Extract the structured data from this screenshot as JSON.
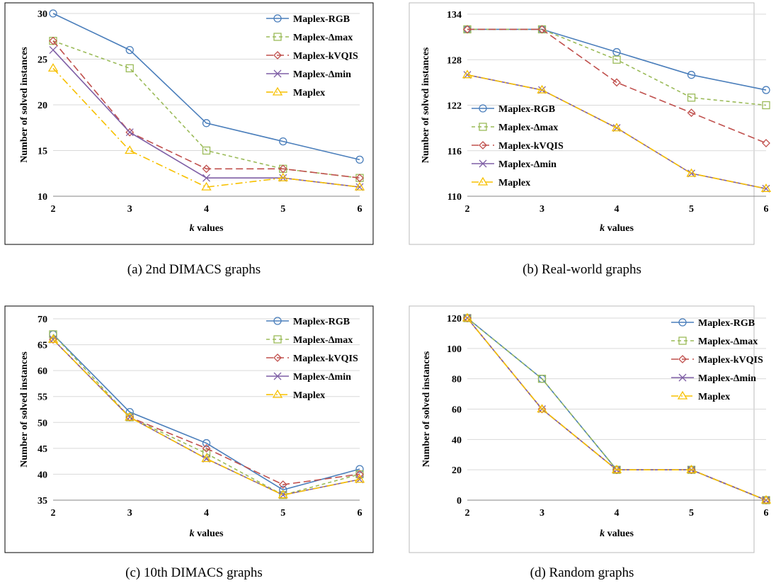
{
  "legend_entries": [
    "Maplex-RGB",
    "Maplex-Δmax",
    "Maplex-kVQIS",
    "Maplex-Δmin",
    "Maplex"
  ],
  "series_styles": [
    {
      "color": "#4a7ebb",
      "dash": "",
      "marker": "circle"
    },
    {
      "color": "#9bbb59",
      "dash": "5,4",
      "marker": "square"
    },
    {
      "color": "#c0504d",
      "dash": "10,5",
      "marker": "diamond"
    },
    {
      "color": "#7f5fa5",
      "dash": "",
      "marker": "x"
    },
    {
      "color": "#f7c000",
      "dash": "10,4,2,4",
      "marker": "triangle"
    }
  ],
  "chart_data": [
    {
      "type": "line",
      "caption": "(a) 2nd DIMACS graphs",
      "xlabel_italic": "k",
      "xlabel_rest": " values",
      "ylabel": "Number of solved instances",
      "x": [
        2,
        3,
        4,
        5,
        6
      ],
      "ylim": [
        10,
        30
      ],
      "yticks": [
        10,
        15,
        20,
        25,
        30
      ],
      "legend": "top-right",
      "series": [
        {
          "name": "Maplex-RGB",
          "values": [
            30,
            26,
            18,
            16,
            14
          ]
        },
        {
          "name": "Maplex-Δmax",
          "values": [
            27,
            24,
            15,
            13,
            12
          ]
        },
        {
          "name": "Maplex-kVQIS",
          "values": [
            27,
            17,
            13,
            13,
            12
          ]
        },
        {
          "name": "Maplex-Δmin",
          "values": [
            26,
            17,
            12,
            12,
            11
          ]
        },
        {
          "name": "Maplex",
          "values": [
            24,
            15,
            11,
            12,
            11
          ]
        }
      ]
    },
    {
      "type": "line",
      "caption": "(b) Real-world graphs",
      "xlabel_italic": "k",
      "xlabel_rest": " values",
      "ylabel": "Number of solved instances",
      "x": [
        2,
        3,
        4,
        5,
        6
      ],
      "ylim": [
        110,
        134
      ],
      "yticks": [
        110,
        116,
        122,
        128,
        134
      ],
      "legend": "left-middle",
      "series": [
        {
          "name": "Maplex-RGB",
          "values": [
            132,
            132,
            129,
            126,
            124
          ]
        },
        {
          "name": "Maplex-Δmax",
          "values": [
            132,
            132,
            128,
            123,
            122
          ]
        },
        {
          "name": "Maplex-kVQIS",
          "values": [
            132,
            132,
            125,
            121,
            117
          ]
        },
        {
          "name": "Maplex-Δmin",
          "values": [
            126,
            124,
            119,
            113,
            111
          ]
        },
        {
          "name": "Maplex",
          "values": [
            126,
            124,
            119,
            113,
            111
          ]
        }
      ]
    },
    {
      "type": "line",
      "caption": "(c) 10th DIMACS graphs",
      "xlabel_italic": "k",
      "xlabel_rest": " values",
      "ylabel": "Number of solved instances",
      "x": [
        2,
        3,
        4,
        5,
        6
      ],
      "ylim": [
        35,
        70
      ],
      "yticks": [
        35,
        40,
        45,
        50,
        55,
        60,
        65,
        70
      ],
      "legend": "top-right",
      "series": [
        {
          "name": "Maplex-RGB",
          "values": [
            67,
            52,
            46,
            37,
            41
          ]
        },
        {
          "name": "Maplex-Δmax",
          "values": [
            67,
            51,
            44,
            36,
            40
          ]
        },
        {
          "name": "Maplex-kVQIS",
          "values": [
            66,
            51,
            45,
            38,
            40
          ]
        },
        {
          "name": "Maplex-Δmin",
          "values": [
            66,
            51,
            43,
            36,
            39
          ]
        },
        {
          "name": "Maplex",
          "values": [
            66,
            51,
            43,
            36,
            39
          ]
        }
      ]
    },
    {
      "type": "line",
      "caption": "(d) Random graphs",
      "xlabel_italic": "k",
      "xlabel_rest": " values",
      "ylabel": "Number of solved instances",
      "x": [
        2,
        3,
        4,
        5,
        6
      ],
      "ylim": [
        0,
        120
      ],
      "yticks": [
        0,
        20,
        40,
        60,
        80,
        100,
        120
      ],
      "legend": "top-right",
      "series": [
        {
          "name": "Maplex-RGB",
          "values": [
            120,
            80,
            20,
            20,
            0
          ]
        },
        {
          "name": "Maplex-Δmax",
          "values": [
            120,
            80,
            20,
            20,
            0
          ]
        },
        {
          "name": "Maplex-kVQIS",
          "values": [
            120,
            60,
            20,
            20,
            0
          ]
        },
        {
          "name": "Maplex-Δmin",
          "values": [
            120,
            60,
            20,
            20,
            0
          ]
        },
        {
          "name": "Maplex",
          "values": [
            120,
            60,
            20,
            20,
            0
          ]
        }
      ]
    }
  ]
}
